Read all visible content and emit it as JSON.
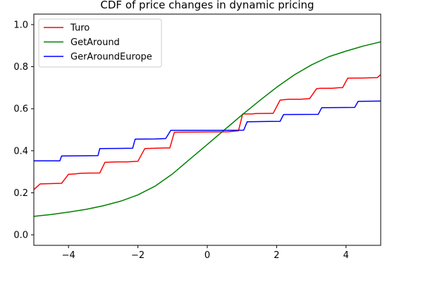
{
  "chart_data": {
    "type": "line",
    "title": "CDF of price changes in dynamic pricing",
    "xlabel": "",
    "ylabel": "",
    "xlim": [
      -5,
      5
    ],
    "ylim": [
      -0.05,
      1.05
    ],
    "x_ticks": [
      -4,
      -2,
      0,
      2,
      4
    ],
    "x_tick_labels": [
      "−4",
      "−2",
      "0",
      "2",
      "4"
    ],
    "y_ticks": [
      0.0,
      0.2,
      0.4,
      0.6,
      0.8,
      1.0
    ],
    "y_tick_labels": [
      "0.0",
      "0.2",
      "0.4",
      "0.6",
      "0.8",
      "1.0"
    ],
    "grid": false,
    "legend_position": "top-left",
    "series": [
      {
        "name": "Turo",
        "color": "#ff0000",
        "x": [
          -5.0,
          -4.82,
          -4.2,
          -4.0,
          -3.8,
          -3.65,
          -3.1,
          -2.95,
          -2.6,
          -2.3,
          -2.0,
          -1.8,
          -1.25,
          -1.08,
          -0.95,
          0.6,
          0.9,
          1.02,
          1.3,
          1.4,
          1.9,
          2.1,
          2.35,
          2.7,
          2.95,
          3.15,
          3.25,
          3.6,
          3.8,
          3.9,
          4.05,
          4.5,
          4.9,
          5.0
        ],
        "y": [
          0.215,
          0.242,
          0.245,
          0.288,
          0.29,
          0.293,
          0.294,
          0.345,
          0.347,
          0.347,
          0.35,
          0.41,
          0.413,
          0.413,
          0.488,
          0.49,
          0.495,
          0.575,
          0.575,
          0.577,
          0.578,
          0.641,
          0.645,
          0.645,
          0.648,
          0.695,
          0.697,
          0.697,
          0.7,
          0.7,
          0.745,
          0.746,
          0.748,
          0.762
        ]
      },
      {
        "name": "GetAround",
        "color": "#008000",
        "x": [
          -5.0,
          -4.5,
          -4.0,
          -3.5,
          -3.0,
          -2.5,
          -2.0,
          -1.5,
          -1.0,
          -0.5,
          0.0,
          0.5,
          1.0,
          1.5,
          2.0,
          2.5,
          3.0,
          3.5,
          4.0,
          4.5,
          5.0
        ],
        "y": [
          0.088,
          0.097,
          0.108,
          0.121,
          0.138,
          0.16,
          0.19,
          0.232,
          0.29,
          0.36,
          0.43,
          0.5,
          0.57,
          0.637,
          0.702,
          0.76,
          0.808,
          0.847,
          0.874,
          0.898,
          0.918
        ]
      },
      {
        "name": "GerAroundEurope",
        "color": "#0000ff",
        "x": [
          -5.0,
          -4.25,
          -4.2,
          -3.6,
          -3.15,
          -3.1,
          -2.5,
          -2.15,
          -2.08,
          -1.5,
          -1.2,
          -1.05,
          -0.5,
          0.5,
          1.05,
          1.15,
          2.1,
          2.2,
          3.2,
          3.3,
          4.25,
          4.35,
          5.0
        ],
        "y": [
          0.352,
          0.352,
          0.375,
          0.376,
          0.377,
          0.41,
          0.411,
          0.412,
          0.455,
          0.456,
          0.458,
          0.497,
          0.497,
          0.497,
          0.498,
          0.538,
          0.54,
          0.572,
          0.573,
          0.605,
          0.606,
          0.635,
          0.636
        ]
      }
    ]
  }
}
